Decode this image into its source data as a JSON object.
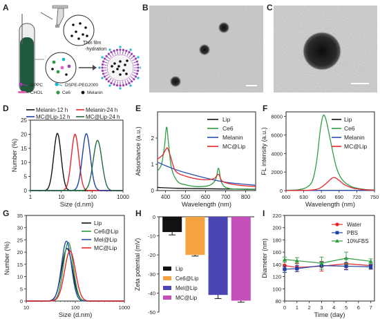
{
  "panel_labels": {
    "A": "A",
    "B": "B",
    "C": "C",
    "D": "D",
    "E": "E",
    "F": "F",
    "G": "G",
    "H": "H",
    "I": "I"
  },
  "schematic": {
    "process": "Thin film\n-hydration",
    "legend": [
      "DPPC",
      "DSPE-PEG2000",
      "CHOL",
      "Ce6",
      "Melanin"
    ]
  },
  "chart_data": [
    {
      "id": "D",
      "type": "line",
      "xscale": "log",
      "xlabel": "Size (d.nm)",
      "ylabel": "Number (%)",
      "xlim": [
        1,
        1000
      ],
      "ylim": [
        0,
        25
      ],
      "xticks": [
        1,
        10,
        100,
        1000
      ],
      "xticklabels": [
        "1",
        "10",
        "100",
        "1000"
      ],
      "yticks": [
        0,
        5,
        10,
        15,
        20,
        25
      ],
      "legend": "top",
      "series": [
        {
          "name": "Melanin-12 h",
          "color": "#111111",
          "peak": 7.5,
          "height": 20.3,
          "width": 0.12
        },
        {
          "name": "Melanin-24 h",
          "color": "#e8252a",
          "peak": 28,
          "height": 20,
          "width": 0.12
        },
        {
          "name": "MC@Lip-12 h",
          "color": "#1f3fa6",
          "peak": 65,
          "height": 20.2,
          "width": 0.13
        },
        {
          "name": "MC@Lip-24 h",
          "color": "#1e6b3a",
          "peak": 150,
          "height": 17.8,
          "width": 0.14
        }
      ]
    },
    {
      "id": "E",
      "type": "line",
      "xlabel": "Wavelength (nm)",
      "ylabel": "Absorbance (a.u.)",
      "xlim": [
        360,
        850
      ],
      "ylim": [
        0,
        3
      ],
      "xticks": [
        400,
        500,
        600,
        700,
        800
      ],
      "yticks": [
        0,
        1,
        2
      ],
      "legend": "top-right",
      "series": [
        {
          "name": "Lip",
          "color": "#111111",
          "values": [
            [
              360,
              0.12
            ],
            [
              500,
              0.08
            ],
            [
              850,
              0.05
            ]
          ]
        },
        {
          "name": "Ce6",
          "color": "#2e9b45",
          "values": [
            [
              360,
              0.75
            ],
            [
              380,
              1.0
            ],
            [
              395,
              1.7
            ],
            [
              405,
              2.42
            ],
            [
              415,
              1.8
            ],
            [
              430,
              0.85
            ],
            [
              460,
              0.35
            ],
            [
              500,
              0.22
            ],
            [
              560,
              0.15
            ],
            [
              620,
              0.2
            ],
            [
              650,
              0.42
            ],
            [
              665,
              0.85
            ],
            [
              680,
              0.3
            ],
            [
              720,
              0.08
            ],
            [
              850,
              0.04
            ]
          ]
        },
        {
          "name": "Melanin",
          "color": "#2b4fb0",
          "values": [
            [
              360,
              1.08
            ],
            [
              400,
              0.95
            ],
            [
              450,
              0.8
            ],
            [
              500,
              0.68
            ],
            [
              600,
              0.48
            ],
            [
              700,
              0.32
            ],
            [
              850,
              0.2
            ]
          ]
        },
        {
          "name": "MC@Lip",
          "color": "#e8252a",
          "values": [
            [
              360,
              1.2
            ],
            [
              385,
              1.35
            ],
            [
              400,
              1.55
            ],
            [
              410,
              1.62
            ],
            [
              425,
              1.3
            ],
            [
              450,
              0.75
            ],
            [
              500,
              0.55
            ],
            [
              580,
              0.42
            ],
            [
              640,
              0.45
            ],
            [
              665,
              0.62
            ],
            [
              685,
              0.35
            ],
            [
              750,
              0.22
            ],
            [
              850,
              0.15
            ]
          ]
        }
      ]
    },
    {
      "id": "F",
      "type": "line",
      "xlabel": "Wavelength (nm)",
      "ylabel": "FL intensity (a.u.)",
      "xlim": [
        600,
        750
      ],
      "ylim": [
        0,
        8500
      ],
      "xticks": [
        600,
        630,
        660,
        690,
        720,
        750
      ],
      "xticklabels": [
        "600",
        "630",
        "660",
        "690",
        "720",
        "750"
      ],
      "yticks": [
        0,
        2000,
        4000,
        6000,
        8000
      ],
      "legend": "top-right",
      "series": [
        {
          "name": "Lip",
          "color": "#111111",
          "values": [
            [
              600,
              20
            ],
            [
              750,
              20
            ]
          ]
        },
        {
          "name": "Ce6",
          "color": "#2e9b45",
          "values": [
            [
              600,
              30
            ],
            [
              620,
              80
            ],
            [
              635,
              350
            ],
            [
              645,
              1100
            ],
            [
              652,
              3200
            ],
            [
              658,
              6500
            ],
            [
              663,
              8100
            ],
            [
              668,
              7600
            ],
            [
              675,
              5500
            ],
            [
              685,
              2600
            ],
            [
              695,
              1200
            ],
            [
              710,
              450
            ],
            [
              730,
              150
            ],
            [
              750,
              60
            ]
          ]
        },
        {
          "name": "Melanin",
          "color": "#2b4fb0",
          "values": [
            [
              600,
              10
            ],
            [
              750,
              10
            ]
          ]
        },
        {
          "name": "MC@Lip",
          "color": "#e8252a",
          "values": [
            [
              600,
              10
            ],
            [
              640,
              40
            ],
            [
              655,
              200
            ],
            [
              665,
              600
            ],
            [
              672,
              1000
            ],
            [
              678,
              1350
            ],
            [
              683,
              1400
            ],
            [
              690,
              1100
            ],
            [
              700,
              600
            ],
            [
              715,
              250
            ],
            [
              735,
              80
            ],
            [
              750,
              40
            ]
          ]
        }
      ]
    },
    {
      "id": "G",
      "type": "line",
      "xscale": "log",
      "xlabel": "Size (d.nm)",
      "ylabel": "Number (%)",
      "xlim": [
        10,
        1000
      ],
      "ylim": [
        0,
        35
      ],
      "xticks": [
        10,
        100,
        1000
      ],
      "xticklabels": [
        "10",
        "100",
        "1000"
      ],
      "yticks": [
        0,
        5,
        10,
        15,
        20,
        25,
        30,
        35
      ],
      "legend": "top-right",
      "series": [
        {
          "name": "Lip",
          "color": "#111111",
          "peak": 68,
          "height": 21.5,
          "width": 0.11
        },
        {
          "name": "Ce6@Lip",
          "color": "#2e9b45",
          "peak": 72,
          "height": 24,
          "width": 0.1
        },
        {
          "name": "Mel@Lip",
          "color": "#2b4fb0",
          "peak": 66,
          "height": 24.5,
          "width": 0.1
        },
        {
          "name": "MC@Lip",
          "color": "#e8252a",
          "peak": 78,
          "height": 20.5,
          "width": 0.11
        }
      ]
    },
    {
      "id": "H",
      "type": "bar",
      "ylabel": "Zeta potential (mV)",
      "ylim": [
        -50,
        0
      ],
      "yticks": [
        0,
        -10,
        -20,
        -30,
        -40,
        -50
      ],
      "legend": "bottom-left",
      "categories": [
        "Lip",
        "Ce6@Lip",
        "Mel@Lip",
        "MC@Lip"
      ],
      "values": [
        -8,
        -20,
        -41,
        -44
      ],
      "errors": [
        1.5,
        0.6,
        1.9,
        0.8
      ],
      "colors": [
        "#111111",
        "#f4a340",
        "#4a46b5",
        "#c44fba"
      ]
    },
    {
      "id": "I",
      "type": "line",
      "xlabel": "Time (day)",
      "ylabel": "Diameter (nm)",
      "xlim": [
        0,
        7.3
      ],
      "ylim": [
        80,
        220
      ],
      "xticks": [
        0,
        1,
        2,
        3,
        4,
        5,
        6,
        7
      ],
      "yticks": [
        80,
        100,
        120,
        140,
        160,
        180,
        200,
        220
      ],
      "legend": "top-right",
      "series": [
        {
          "name": "Water",
          "color": "#e8252a",
          "marker": "circle",
          "x": [
            0,
            1,
            3,
            5,
            7
          ],
          "values": [
            138,
            135,
            137,
            141,
            138
          ],
          "err": [
            6,
            7,
            8,
            9,
            5
          ]
        },
        {
          "name": "PBS",
          "color": "#1f3fa6",
          "marker": "square",
          "x": [
            0,
            1,
            3,
            5,
            7
          ],
          "values": [
            132,
            133,
            138,
            137,
            136
          ],
          "err": [
            5,
            5,
            6,
            6,
            4
          ]
        },
        {
          "name": "10%FBS",
          "color": "#2e9b45",
          "marker": "triangle",
          "x": [
            0,
            1,
            3,
            5,
            7
          ],
          "values": [
            148,
            146,
            142,
            150,
            145
          ],
          "err": [
            4,
            5,
            10,
            10,
            4
          ]
        }
      ]
    }
  ]
}
